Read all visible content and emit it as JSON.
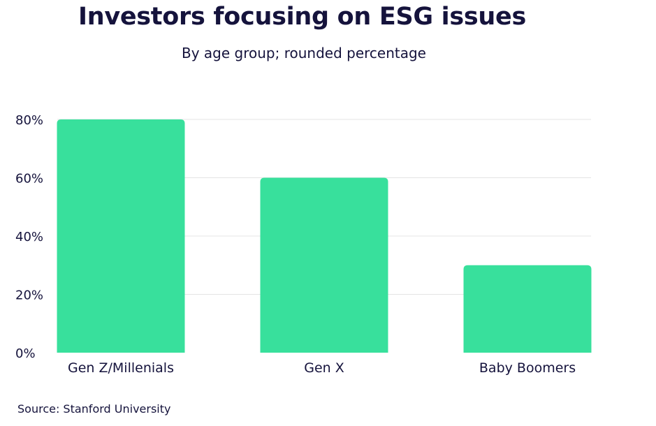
{
  "chart_data": {
    "type": "bar",
    "title": "Investors focusing on ESG issues",
    "subtitle": "By age group; rounded percentage",
    "categories": [
      "Gen Z/Millenials",
      "Gen X",
      "Baby Boomers"
    ],
    "values": [
      80,
      60,
      30
    ],
    "ylim": [
      0,
      80
    ],
    "yticks": [
      0,
      20,
      40,
      60,
      80
    ],
    "ytick_labels": [
      "0%",
      "20%",
      "40%",
      "60%",
      "80%"
    ],
    "xlabel": "",
    "ylabel": "",
    "grid": true,
    "bar_color": "#38e09c",
    "grid_color": "#e4e4e4"
  },
  "source": "Source: Stanford University"
}
